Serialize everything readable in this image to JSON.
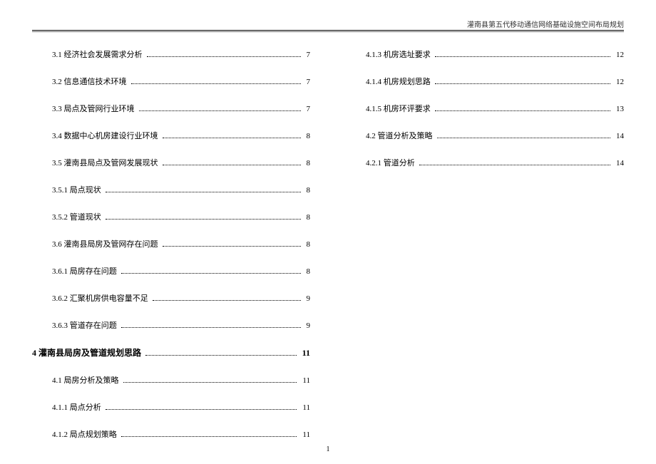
{
  "header": {
    "title": "灌南县第五代移动通信网络基础设施空间布局规划"
  },
  "page_number": "1",
  "toc_left": [
    {
      "level": 2,
      "label": "3.1 经济社会发展需求分析",
      "page": "7"
    },
    {
      "level": 2,
      "label": "3.2 信息通信技术环境",
      "page": "7"
    },
    {
      "level": 2,
      "label": "3.3 局点及管网行业环境",
      "page": "7"
    },
    {
      "level": 2,
      "label": "3.4 数据中心机房建设行业环境",
      "page": "8"
    },
    {
      "level": 2,
      "label": "3.5 灌南县局点及管网发展现状",
      "page": "8"
    },
    {
      "level": 3,
      "label": "3.5.1 局点现状",
      "page": "8"
    },
    {
      "level": 3,
      "label": "3.5.2 管道现状",
      "page": "8"
    },
    {
      "level": 2,
      "label": "3.6 灌南县局房及管网存在问题",
      "page": "8"
    },
    {
      "level": 3,
      "label": "3.6.1 局房存在问题",
      "page": "8"
    },
    {
      "level": 3,
      "label": "3.6.2 汇聚机房供电容量不足",
      "page": "9"
    },
    {
      "level": 3,
      "label": "3.6.3 管道存在问题",
      "page": "9"
    },
    {
      "level": 1,
      "label": "4 灌南县局房及管道规划思路",
      "page": "11"
    },
    {
      "level": 2,
      "label": "4.1 局房分析及策略",
      "page": "11"
    },
    {
      "level": 3,
      "label": "4.1.1 局点分析",
      "page": "11"
    },
    {
      "level": 3,
      "label": "4.1.2 局点规划策略",
      "page": "11"
    }
  ],
  "toc_right": [
    {
      "level": 3,
      "label": "4.1.3 机房选址要求",
      "page": "12"
    },
    {
      "level": 3,
      "label": "4.1.4 机房规划思路",
      "page": "12"
    },
    {
      "level": 3,
      "label": "4.1.5 机房环评要求",
      "page": "13"
    },
    {
      "level": 2,
      "label": "4.2 管道分析及策略",
      "page": "14"
    },
    {
      "level": 3,
      "label": "4.2.1 管道分析",
      "page": "14"
    }
  ]
}
